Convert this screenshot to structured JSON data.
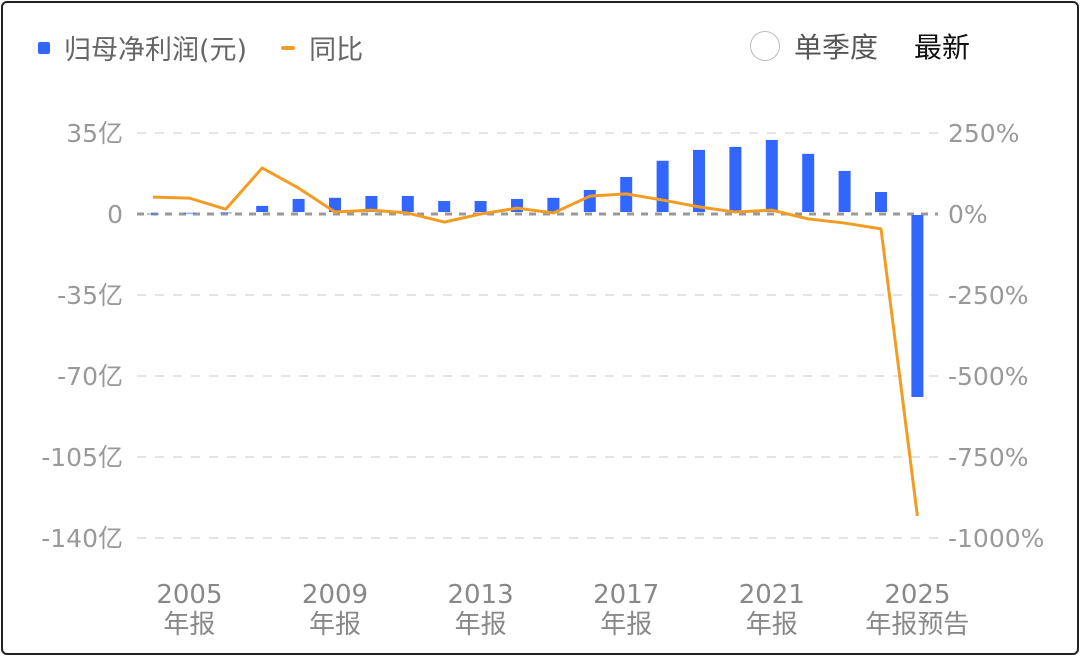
{
  "legend": {
    "bar_series": "归母净利润(元)",
    "line_series": "同比"
  },
  "controls": {
    "single_quarter": "单季度",
    "latest": "最新"
  },
  "colors": {
    "bar": "#3366ff",
    "line": "#f39c24"
  },
  "chart_data": {
    "type": "bar+line",
    "categories": [
      "2004",
      "2005",
      "2006",
      "2007",
      "2008",
      "2009",
      "2010",
      "2011",
      "2012",
      "2013",
      "2014",
      "2015",
      "2016",
      "2017",
      "2018",
      "2019",
      "2020",
      "2021",
      "2022",
      "2023",
      "2024",
      "2025"
    ],
    "x_tick_labels": [
      {
        "year": "2005",
        "sub": "年报",
        "index": 1
      },
      {
        "year": "2009",
        "sub": "年报",
        "index": 5
      },
      {
        "year": "2013",
        "sub": "年报",
        "index": 9
      },
      {
        "year": "2017",
        "sub": "年报",
        "index": 13
      },
      {
        "year": "2021",
        "sub": "年报",
        "index": 17
      },
      {
        "year": "2025",
        "sub": "年报预告",
        "index": 21
      }
    ],
    "series": [
      {
        "name": "归母净利润(元)",
        "type": "bar",
        "axis": "left",
        "unit": "亿",
        "values": [
          0.3,
          0.6,
          0.8,
          3.5,
          6.5,
          7,
          7.8,
          7.8,
          5.6,
          5.6,
          6.5,
          7,
          10.4,
          16,
          23,
          27.7,
          29,
          32,
          26,
          18.6,
          9.5,
          -79.5
        ]
      },
      {
        "name": "同比",
        "type": "line",
        "axis": "right",
        "unit": "%",
        "values": [
          52,
          49,
          15,
          142,
          80,
          6,
          12,
          3,
          -25,
          0,
          18,
          3,
          55,
          62,
          43,
          22,
          6,
          12,
          -15,
          -28,
          -46,
          -932
        ]
      }
    ],
    "y_left": {
      "ylim": [
        -140,
        35
      ],
      "ticks": [
        35,
        0,
        -35,
        -70,
        -105,
        -140
      ],
      "tick_labels": [
        "35亿",
        "0",
        "-35亿",
        "-70亿",
        "-105亿",
        "-140亿"
      ]
    },
    "y_right": {
      "ylim": [
        -1000,
        250
      ],
      "ticks": [
        250,
        0,
        -250,
        -500,
        -750,
        -1000
      ],
      "tick_labels": [
        "250%",
        "0%",
        "-250%",
        "-500%",
        "-750%",
        "-1000%"
      ]
    },
    "grid": true
  }
}
